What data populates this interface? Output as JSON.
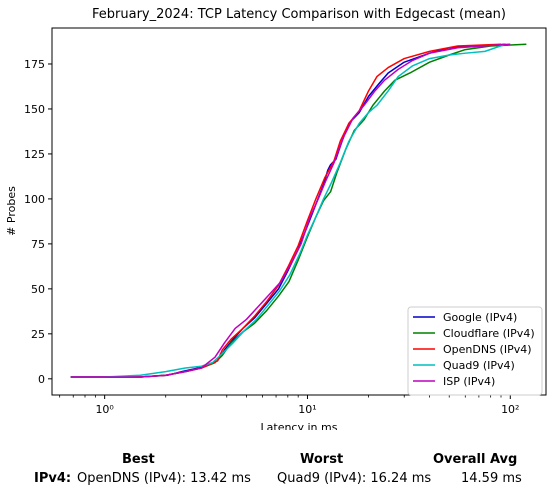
{
  "chart_data": {
    "type": "line",
    "title": "February_2024: TCP Latency Comparison with Edgecast (mean)",
    "xlabel": "Latency in ms",
    "ylabel": "# Probes",
    "xscale": "log",
    "xlim": [
      0.55,
      150
    ],
    "ylim": [
      -9,
      195
    ],
    "xticks": [
      {
        "value": 1,
        "label": "10⁰"
      },
      {
        "value": 10,
        "label": "10¹"
      },
      {
        "value": 100,
        "label": "10²"
      }
    ],
    "yticks": [
      0,
      25,
      50,
      75,
      100,
      125,
      150,
      175
    ],
    "grid": false,
    "legend_position": "lower-right",
    "series": [
      {
        "name": "Google (IPv4)",
        "color": "#0000cc",
        "points": [
          [
            0.68,
            1
          ],
          [
            1.0,
            1
          ],
          [
            1.5,
            1
          ],
          [
            2.05,
            2
          ],
          [
            2.4,
            4
          ],
          [
            2.9,
            6
          ],
          [
            3.3,
            8
          ],
          [
            3.6,
            10
          ],
          [
            3.9,
            16
          ],
          [
            4.3,
            22
          ],
          [
            4.8,
            28
          ],
          [
            5.5,
            34
          ],
          [
            6.3,
            42
          ],
          [
            7.2,
            50
          ],
          [
            8.0,
            60
          ],
          [
            9.0,
            72
          ],
          [
            10.0,
            85
          ],
          [
            11.0,
            97
          ],
          [
            12.0,
            108
          ],
          [
            12.6,
            116
          ],
          [
            13.0,
            119
          ],
          [
            13.8,
            122
          ],
          [
            14.8,
            132
          ],
          [
            16.0,
            142
          ],
          [
            18.0,
            148
          ],
          [
            20.0,
            157
          ],
          [
            22.5,
            164
          ],
          [
            25.0,
            170
          ],
          [
            30.0,
            176
          ],
          [
            40.0,
            181
          ],
          [
            50.0,
            184
          ],
          [
            70.0,
            185
          ],
          [
            95.0,
            186
          ]
        ]
      },
      {
        "name": "Cloudflare (IPv4)",
        "color": "#008000",
        "points": [
          [
            0.68,
            1
          ],
          [
            1.0,
            1
          ],
          [
            1.5,
            1
          ],
          [
            2.0,
            2
          ],
          [
            2.5,
            4
          ],
          [
            3.0,
            6
          ],
          [
            3.5,
            9
          ],
          [
            3.8,
            13
          ],
          [
            4.2,
            20
          ],
          [
            4.8,
            26
          ],
          [
            5.5,
            31
          ],
          [
            6.3,
            38
          ],
          [
            7.2,
            46
          ],
          [
            8.1,
            54
          ],
          [
            9.0,
            66
          ],
          [
            10.0,
            79
          ],
          [
            11.0,
            90
          ],
          [
            12.0,
            99
          ],
          [
            13.0,
            104
          ],
          [
            14.0,
            115
          ],
          [
            15.5,
            128
          ],
          [
            17.0,
            138
          ],
          [
            19.0,
            144
          ],
          [
            21.0,
            152
          ],
          [
            24.0,
            160
          ],
          [
            27.0,
            166
          ],
          [
            32.0,
            170
          ],
          [
            40.0,
            176
          ],
          [
            50.0,
            180
          ],
          [
            60.0,
            183
          ],
          [
            80.0,
            185
          ],
          [
            120.0,
            186
          ]
        ]
      },
      {
        "name": "OpenDNS (IPv4)",
        "color": "#ff0000",
        "points": [
          [
            0.68,
            1
          ],
          [
            1.0,
            1
          ],
          [
            1.5,
            1
          ],
          [
            2.0,
            2
          ],
          [
            2.5,
            4
          ],
          [
            3.0,
            6
          ],
          [
            3.6,
            10
          ],
          [
            3.8,
            16
          ],
          [
            4.2,
            22
          ],
          [
            4.8,
            28
          ],
          [
            5.5,
            35
          ],
          [
            6.3,
            43
          ],
          [
            7.2,
            52
          ],
          [
            8.0,
            62
          ],
          [
            9.0,
            74
          ],
          [
            10.0,
            88
          ],
          [
            11.0,
            100
          ],
          [
            12.2,
            112
          ],
          [
            13.5,
            121
          ],
          [
            14.5,
            132
          ],
          [
            16.0,
            142
          ],
          [
            18.0,
            149
          ],
          [
            20.0,
            160
          ],
          [
            22.0,
            168
          ],
          [
            25.0,
            173
          ],
          [
            30.0,
            178
          ],
          [
            40.0,
            182
          ],
          [
            55.0,
            185
          ],
          [
            90.0,
            186
          ]
        ]
      },
      {
        "name": "Quad9 (IPv4)",
        "color": "#00bfbf",
        "points": [
          [
            0.68,
            1
          ],
          [
            1.0,
            1
          ],
          [
            1.5,
            2
          ],
          [
            2.0,
            4
          ],
          [
            2.5,
            6
          ],
          [
            3.0,
            7
          ],
          [
            3.4,
            9
          ],
          [
            3.8,
            14
          ],
          [
            4.3,
            20
          ],
          [
            4.9,
            27
          ],
          [
            5.6,
            33
          ],
          [
            6.4,
            41
          ],
          [
            7.3,
            49
          ],
          [
            8.2,
            58
          ],
          [
            9.2,
            70
          ],
          [
            10.0,
            80
          ],
          [
            11.0,
            90
          ],
          [
            12.0,
            100
          ],
          [
            13.0,
            108
          ],
          [
            14.5,
            120
          ],
          [
            16.0,
            132
          ],
          [
            18.0,
            142
          ],
          [
            20.0,
            148
          ],
          [
            22.0,
            152
          ],
          [
            25.0,
            160
          ],
          [
            28.0,
            168
          ],
          [
            33.0,
            174
          ],
          [
            40.0,
            178
          ],
          [
            50.0,
            180
          ],
          [
            60.0,
            181
          ],
          [
            75.0,
            182
          ],
          [
            95.0,
            186
          ]
        ]
      },
      {
        "name": "ISP (IPv4)",
        "color": "#bf00bf",
        "points": [
          [
            0.68,
            1
          ],
          [
            1.0,
            1
          ],
          [
            1.5,
            1
          ],
          [
            2.0,
            2
          ],
          [
            2.5,
            4
          ],
          [
            3.0,
            6
          ],
          [
            3.5,
            12
          ],
          [
            3.9,
            20
          ],
          [
            4.4,
            28
          ],
          [
            5.0,
            33
          ],
          [
            5.7,
            40
          ],
          [
            6.5,
            47
          ],
          [
            7.4,
            54
          ],
          [
            8.3,
            64
          ],
          [
            9.3,
            75
          ],
          [
            10.3,
            90
          ],
          [
            11.3,
            100
          ],
          [
            12.3,
            110
          ],
          [
            13.5,
            120
          ],
          [
            15.0,
            134
          ],
          [
            16.8,
            145
          ],
          [
            19.0,
            152
          ],
          [
            21.5,
            160
          ],
          [
            24.0,
            166
          ],
          [
            28.0,
            172
          ],
          [
            33.0,
            177
          ],
          [
            40.0,
            181
          ],
          [
            55.0,
            184
          ],
          [
            100.0,
            186
          ]
        ]
      }
    ]
  },
  "summary": {
    "best_label": "Best",
    "worst_label": "Worst",
    "avg_label": "Overall Avg",
    "row_label": "IPv4:",
    "best_value": "OpenDNS (IPv4): 13.42 ms",
    "worst_value": "Quad9 (IPv4): 16.24 ms",
    "avg_value": "14.59 ms"
  }
}
